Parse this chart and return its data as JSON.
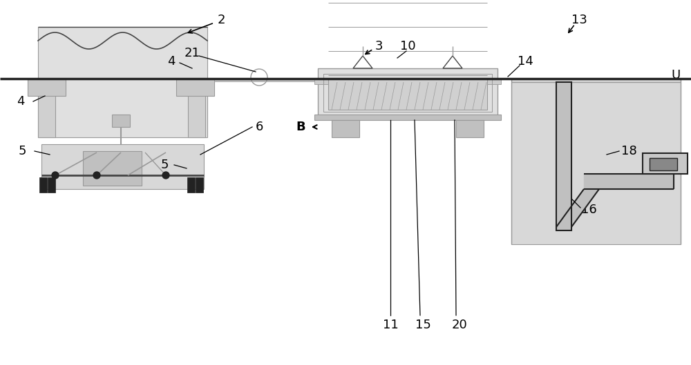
{
  "bg_color": "#ffffff",
  "lc": "#999999",
  "dk": "#444444",
  "blk": "#222222",
  "fig_width": 10.0,
  "fig_height": 5.29,
  "xlim": [
    0,
    1000
  ],
  "ylim": [
    0,
    529
  ],
  "ground_y": 415
}
